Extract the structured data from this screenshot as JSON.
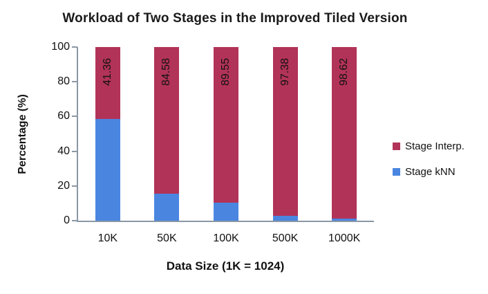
{
  "chart_data": {
    "type": "bar",
    "stacked": true,
    "title": "Workload of Two Stages in the Improved Tiled Version",
    "xlabel": "Data Size (1K = 1024)",
    "ylabel": "Percentage (%)",
    "ylim": [
      0,
      100
    ],
    "yticks": [
      0,
      20,
      40,
      60,
      80,
      100
    ],
    "grid": false,
    "legend_position": "right",
    "categories": [
      "10K",
      "50K",
      "100K",
      "500K",
      "1000K"
    ],
    "series": [
      {
        "name": "Stage kNN",
        "color": "#4A86E0",
        "values": [
          58.64,
          15.42,
          10.45,
          2.62,
          1.38
        ]
      },
      {
        "name": "Stage Interp.",
        "color": "#B23358",
        "values": [
          41.36,
          84.58,
          89.55,
          97.38,
          98.62
        ]
      }
    ],
    "bar_labels": [
      "41.36",
      "84.58",
      "89.55",
      "97.38",
      "98.62"
    ],
    "legend_entries": [
      {
        "label": "Stage Interp.",
        "color": "#B23358"
      },
      {
        "label": "Stage kNN",
        "color": "#4A86E0"
      }
    ],
    "axis_color": "#8a97a4"
  }
}
